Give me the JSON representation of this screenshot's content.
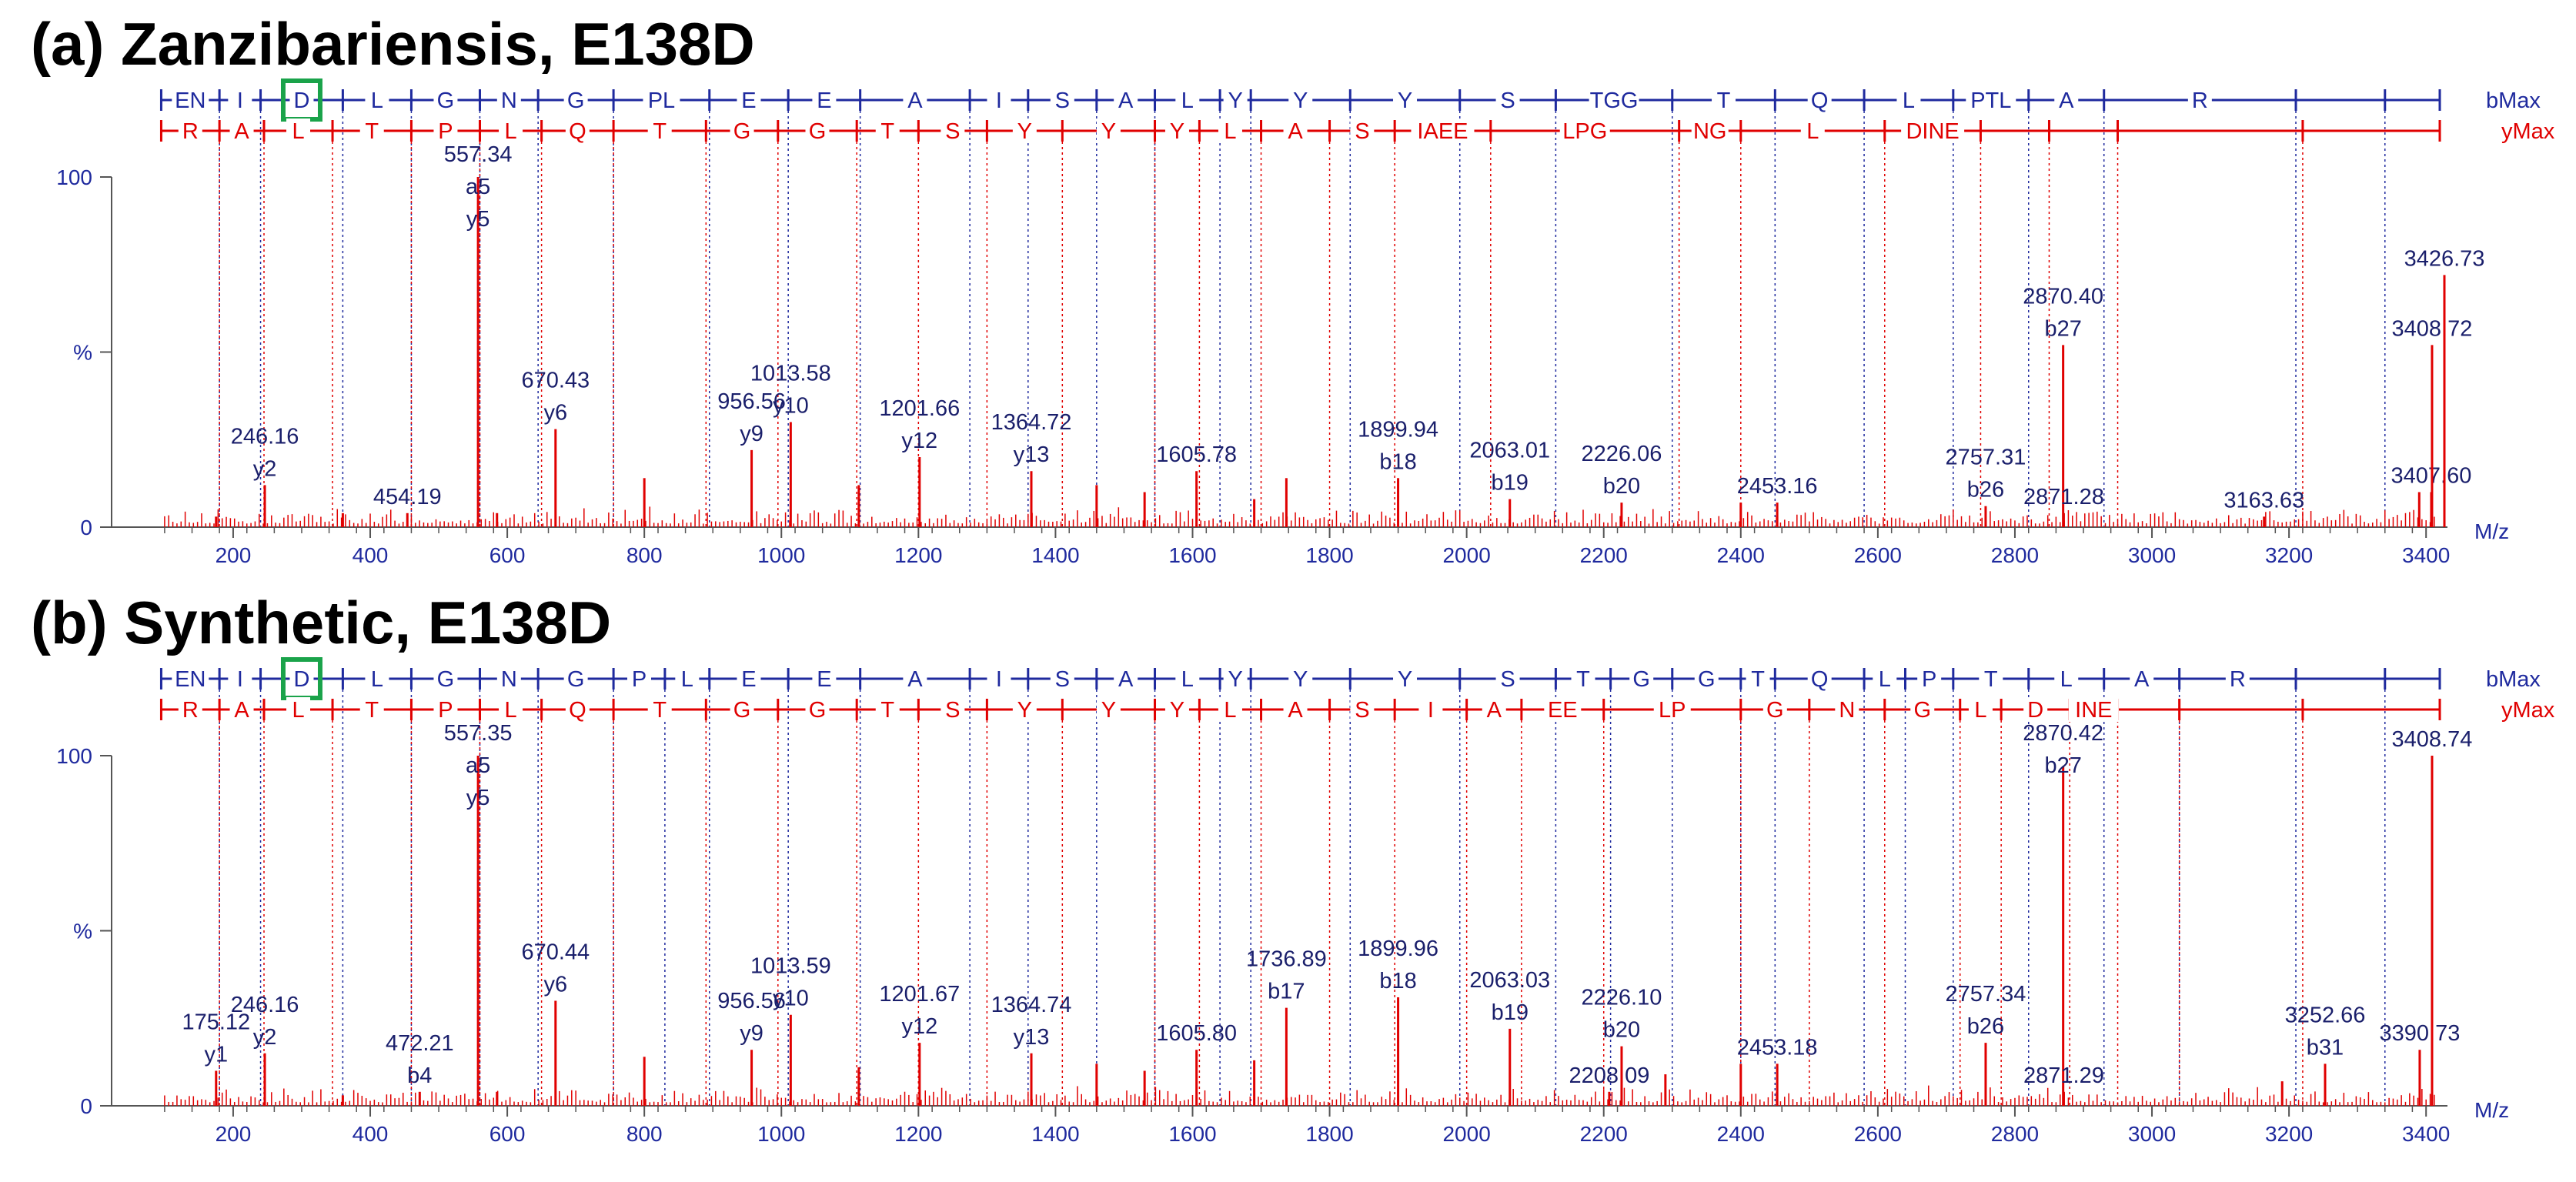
{
  "colors": {
    "blue": "#1f2a9e",
    "red": "#e00000",
    "green": "#1aa34a",
    "axis": "#555555"
  },
  "chart_data": [
    {
      "type": "bar",
      "title": "(a) Zanzibariensis, E138D",
      "xlabel": "M/z",
      "ylabel": "%",
      "xlim": [
        90,
        3420
      ],
      "ylim": [
        0,
        100
      ],
      "x_ticks": [
        200,
        400,
        600,
        800,
        1000,
        1200,
        1400,
        1600,
        1800,
        2000,
        2200,
        2400,
        2600,
        2800,
        3000,
        3200,
        3400
      ],
      "y_ticks": [
        "0",
        "%",
        "100"
      ],
      "b_series": {
        "label": "bMax",
        "boundaries": [
          95,
          180,
          240,
          360,
          460,
          560,
          645,
          755,
          895,
          1010,
          1115,
          1275,
          1360,
          1460,
          1545,
          1640,
          1685,
          1830,
          1990,
          2130,
          2300,
          2450,
          2580,
          2710,
          2820,
          2930,
          3210,
          3340,
          3420
        ],
        "residues": [
          "EN",
          "I",
          "D",
          "L",
          "G",
          "N",
          "G",
          "PL",
          "E",
          "E",
          "A",
          "I",
          "S",
          "A",
          "L",
          "Y",
          "Y",
          "Y",
          "S",
          "TGG",
          "T",
          "Q",
          "L",
          "PTL",
          "A",
          "R"
        ],
        "highlight": "D"
      },
      "y_series": {
        "label": "yMax",
        "boundaries": [
          95,
          180,
          245,
          345,
          460,
          560,
          650,
          755,
          890,
          995,
          1110,
          1200,
          1300,
          1410,
          1545,
          1610,
          1700,
          1800,
          1895,
          2035,
          2310,
          2400,
          2610,
          2750,
          2850,
          2950,
          3220,
          3420
        ],
        "residues": [
          "R",
          "A",
          "L",
          "T",
          "P",
          "L",
          "Q",
          "T",
          "G",
          "G",
          "T",
          "S",
          "Y",
          "Y",
          "Y",
          "L",
          "A",
          "S",
          "IAEE",
          "LPG",
          "NG",
          "L",
          "DINE"
        ]
      },
      "peaks": [
        {
          "mz": 175.1,
          "intensity": 3
        },
        {
          "mz": 246.16,
          "intensity": 12,
          "label": "246.16",
          "ion": "y2"
        },
        {
          "mz": 360,
          "intensity": 4
        },
        {
          "mz": 454.19,
          "intensity": 4,
          "label": "454.19"
        },
        {
          "mz": 557.34,
          "intensity": 100,
          "label": "557.34",
          "ion": "a5\ny5"
        },
        {
          "mz": 585,
          "intensity": 4
        },
        {
          "mz": 670.43,
          "intensity": 28,
          "label": "670.43",
          "ion": "y6"
        },
        {
          "mz": 800,
          "intensity": 14
        },
        {
          "mz": 956.56,
          "intensity": 22,
          "label": "956.56",
          "ion": "y9"
        },
        {
          "mz": 1013.58,
          "intensity": 30,
          "label": "1013.58",
          "ion": "y10"
        },
        {
          "mz": 1113,
          "intensity": 12
        },
        {
          "mz": 1201.66,
          "intensity": 20,
          "label": "1201.66",
          "ion": "y12"
        },
        {
          "mz": 1364.72,
          "intensity": 16,
          "label": "1364.72",
          "ion": "y13"
        },
        {
          "mz": 1460,
          "intensity": 12
        },
        {
          "mz": 1530,
          "intensity": 10
        },
        {
          "mz": 1605.78,
          "intensity": 16,
          "label": "1605.78"
        },
        {
          "mz": 1690,
          "intensity": 8
        },
        {
          "mz": 1736.9,
          "intensity": 14
        },
        {
          "mz": 1899.94,
          "intensity": 14,
          "label": "1899.94",
          "ion": "b18"
        },
        {
          "mz": 2063.01,
          "intensity": 8,
          "label": "2063.01",
          "ion": "b19"
        },
        {
          "mz": 2226.06,
          "intensity": 7,
          "label": "2226.06",
          "ion": "b20"
        },
        {
          "mz": 2400,
          "intensity": 7
        },
        {
          "mz": 2453.16,
          "intensity": 7,
          "label": "2453.16"
        },
        {
          "mz": 2757.31,
          "intensity": 6,
          "label": "2757.31",
          "ion": "b26"
        },
        {
          "mz": 2870.4,
          "intensity": 52,
          "label": "2870.40",
          "ion": "b27"
        },
        {
          "mz": 2871.28,
          "intensity": 4,
          "label": "2871.28"
        },
        {
          "mz": 3163.63,
          "intensity": 3,
          "label": "3163.63"
        },
        {
          "mz": 3390,
          "intensity": 10
        },
        {
          "mz": 3407.6,
          "intensity": 10,
          "label": "3407.60"
        },
        {
          "mz": 3408.72,
          "intensity": 52,
          "label": "3408.72"
        },
        {
          "mz": 3426.73,
          "intensity": 72,
          "label": "3426.73"
        }
      ]
    },
    {
      "type": "bar",
      "title": "(b) Synthetic, E138D",
      "xlabel": "M/z",
      "ylabel": "%",
      "xlim": [
        90,
        3420
      ],
      "ylim": [
        0,
        100
      ],
      "x_ticks": [
        200,
        400,
        600,
        800,
        1000,
        1200,
        1400,
        1600,
        1800,
        2000,
        2200,
        2400,
        2600,
        2800,
        3000,
        3200,
        3400
      ],
      "y_ticks": [
        "0",
        "%",
        "100"
      ],
      "b_series": {
        "label": "bMax",
        "boundaries": [
          95,
          180,
          240,
          360,
          460,
          560,
          645,
          755,
          830,
          895,
          1010,
          1115,
          1275,
          1360,
          1460,
          1545,
          1640,
          1685,
          1830,
          1990,
          2130,
          2210,
          2300,
          2400,
          2450,
          2580,
          2640,
          2710,
          2820,
          2930,
          3040,
          3210,
          3340,
          3420
        ],
        "residues": [
          "EN",
          "I",
          "D",
          "L",
          "G",
          "N",
          "G",
          "P",
          "L",
          "E",
          "E",
          "A",
          "I",
          "S",
          "A",
          "L",
          "Y",
          "Y",
          "Y",
          "S",
          "T",
          "G",
          "G",
          "T",
          "Q",
          "L",
          "P",
          "T",
          "L",
          "A",
          "R"
        ],
        "highlight": "D"
      },
      "y_series": {
        "label": "yMax",
        "boundaries": [
          95,
          180,
          245,
          345,
          460,
          560,
          650,
          755,
          890,
          995,
          1110,
          1200,
          1300,
          1410,
          1545,
          1610,
          1700,
          1800,
          1895,
          2000,
          2080,
          2200,
          2400,
          2500,
          2610,
          2720,
          2780,
          2880,
          2950,
          3040,
          3220,
          3420
        ],
        "residues": [
          "R",
          "A",
          "L",
          "T",
          "P",
          "L",
          "Q",
          "T",
          "G",
          "G",
          "T",
          "S",
          "Y",
          "Y",
          "Y",
          "L",
          "A",
          "S",
          "I",
          "A",
          "EE",
          "LP",
          "G",
          "N",
          "G",
          "L",
          "D",
          "INE"
        ]
      },
      "peaks": [
        {
          "mz": 175.12,
          "intensity": 10,
          "label": "175.12",
          "ion": "y1"
        },
        {
          "mz": 246.16,
          "intensity": 15,
          "label": "246.16",
          "ion": "y2"
        },
        {
          "mz": 360,
          "intensity": 3
        },
        {
          "mz": 472.21,
          "intensity": 4,
          "label": "472.21",
          "ion": "b4"
        },
        {
          "mz": 557.35,
          "intensity": 100,
          "label": "557.35",
          "ion": "a5\ny5"
        },
        {
          "mz": 585,
          "intensity": 4
        },
        {
          "mz": 670.44,
          "intensity": 30,
          "label": "670.44",
          "ion": "y6"
        },
        {
          "mz": 800,
          "intensity": 14
        },
        {
          "mz": 956.56,
          "intensity": 16,
          "label": "956.56",
          "ion": "y9"
        },
        {
          "mz": 1013.59,
          "intensity": 26,
          "label": "1013.59",
          "ion": "y10"
        },
        {
          "mz": 1113,
          "intensity": 11
        },
        {
          "mz": 1201.67,
          "intensity": 18,
          "label": "1201.67",
          "ion": "y12"
        },
        {
          "mz": 1364.74,
          "intensity": 15,
          "label": "1364.74",
          "ion": "y13"
        },
        {
          "mz": 1460,
          "intensity": 12
        },
        {
          "mz": 1530,
          "intensity": 10
        },
        {
          "mz": 1605.8,
          "intensity": 16,
          "label": "1605.80"
        },
        {
          "mz": 1690,
          "intensity": 13
        },
        {
          "mz": 1736.89,
          "intensity": 28,
          "label": "1736.89",
          "ion": "b17"
        },
        {
          "mz": 1899.96,
          "intensity": 31,
          "label": "1899.96",
          "ion": "b18"
        },
        {
          "mz": 2063.03,
          "intensity": 22,
          "label": "2063.03",
          "ion": "b19"
        },
        {
          "mz": 2208.09,
          "intensity": 4,
          "label": "2208.09"
        },
        {
          "mz": 2226.1,
          "intensity": 17,
          "label": "2226.10",
          "ion": "b20"
        },
        {
          "mz": 2290,
          "intensity": 9
        },
        {
          "mz": 2400,
          "intensity": 12
        },
        {
          "mz": 2453.18,
          "intensity": 12,
          "label": "2453.18"
        },
        {
          "mz": 2757.34,
          "intensity": 18,
          "label": "2757.34",
          "ion": "b26"
        },
        {
          "mz": 2870.42,
          "intensity": 97,
          "label": "2870.42",
          "ion": "b27"
        },
        {
          "mz": 2871.29,
          "intensity": 4,
          "label": "2871.29"
        },
        {
          "mz": 3190,
          "intensity": 7
        },
        {
          "mz": 3252.66,
          "intensity": 12,
          "label": "3252.66",
          "ion": "b31"
        },
        {
          "mz": 3390.73,
          "intensity": 16,
          "label": "3390.73"
        },
        {
          "mz": 3408.74,
          "intensity": 100,
          "label": "3408.74"
        }
      ]
    }
  ]
}
